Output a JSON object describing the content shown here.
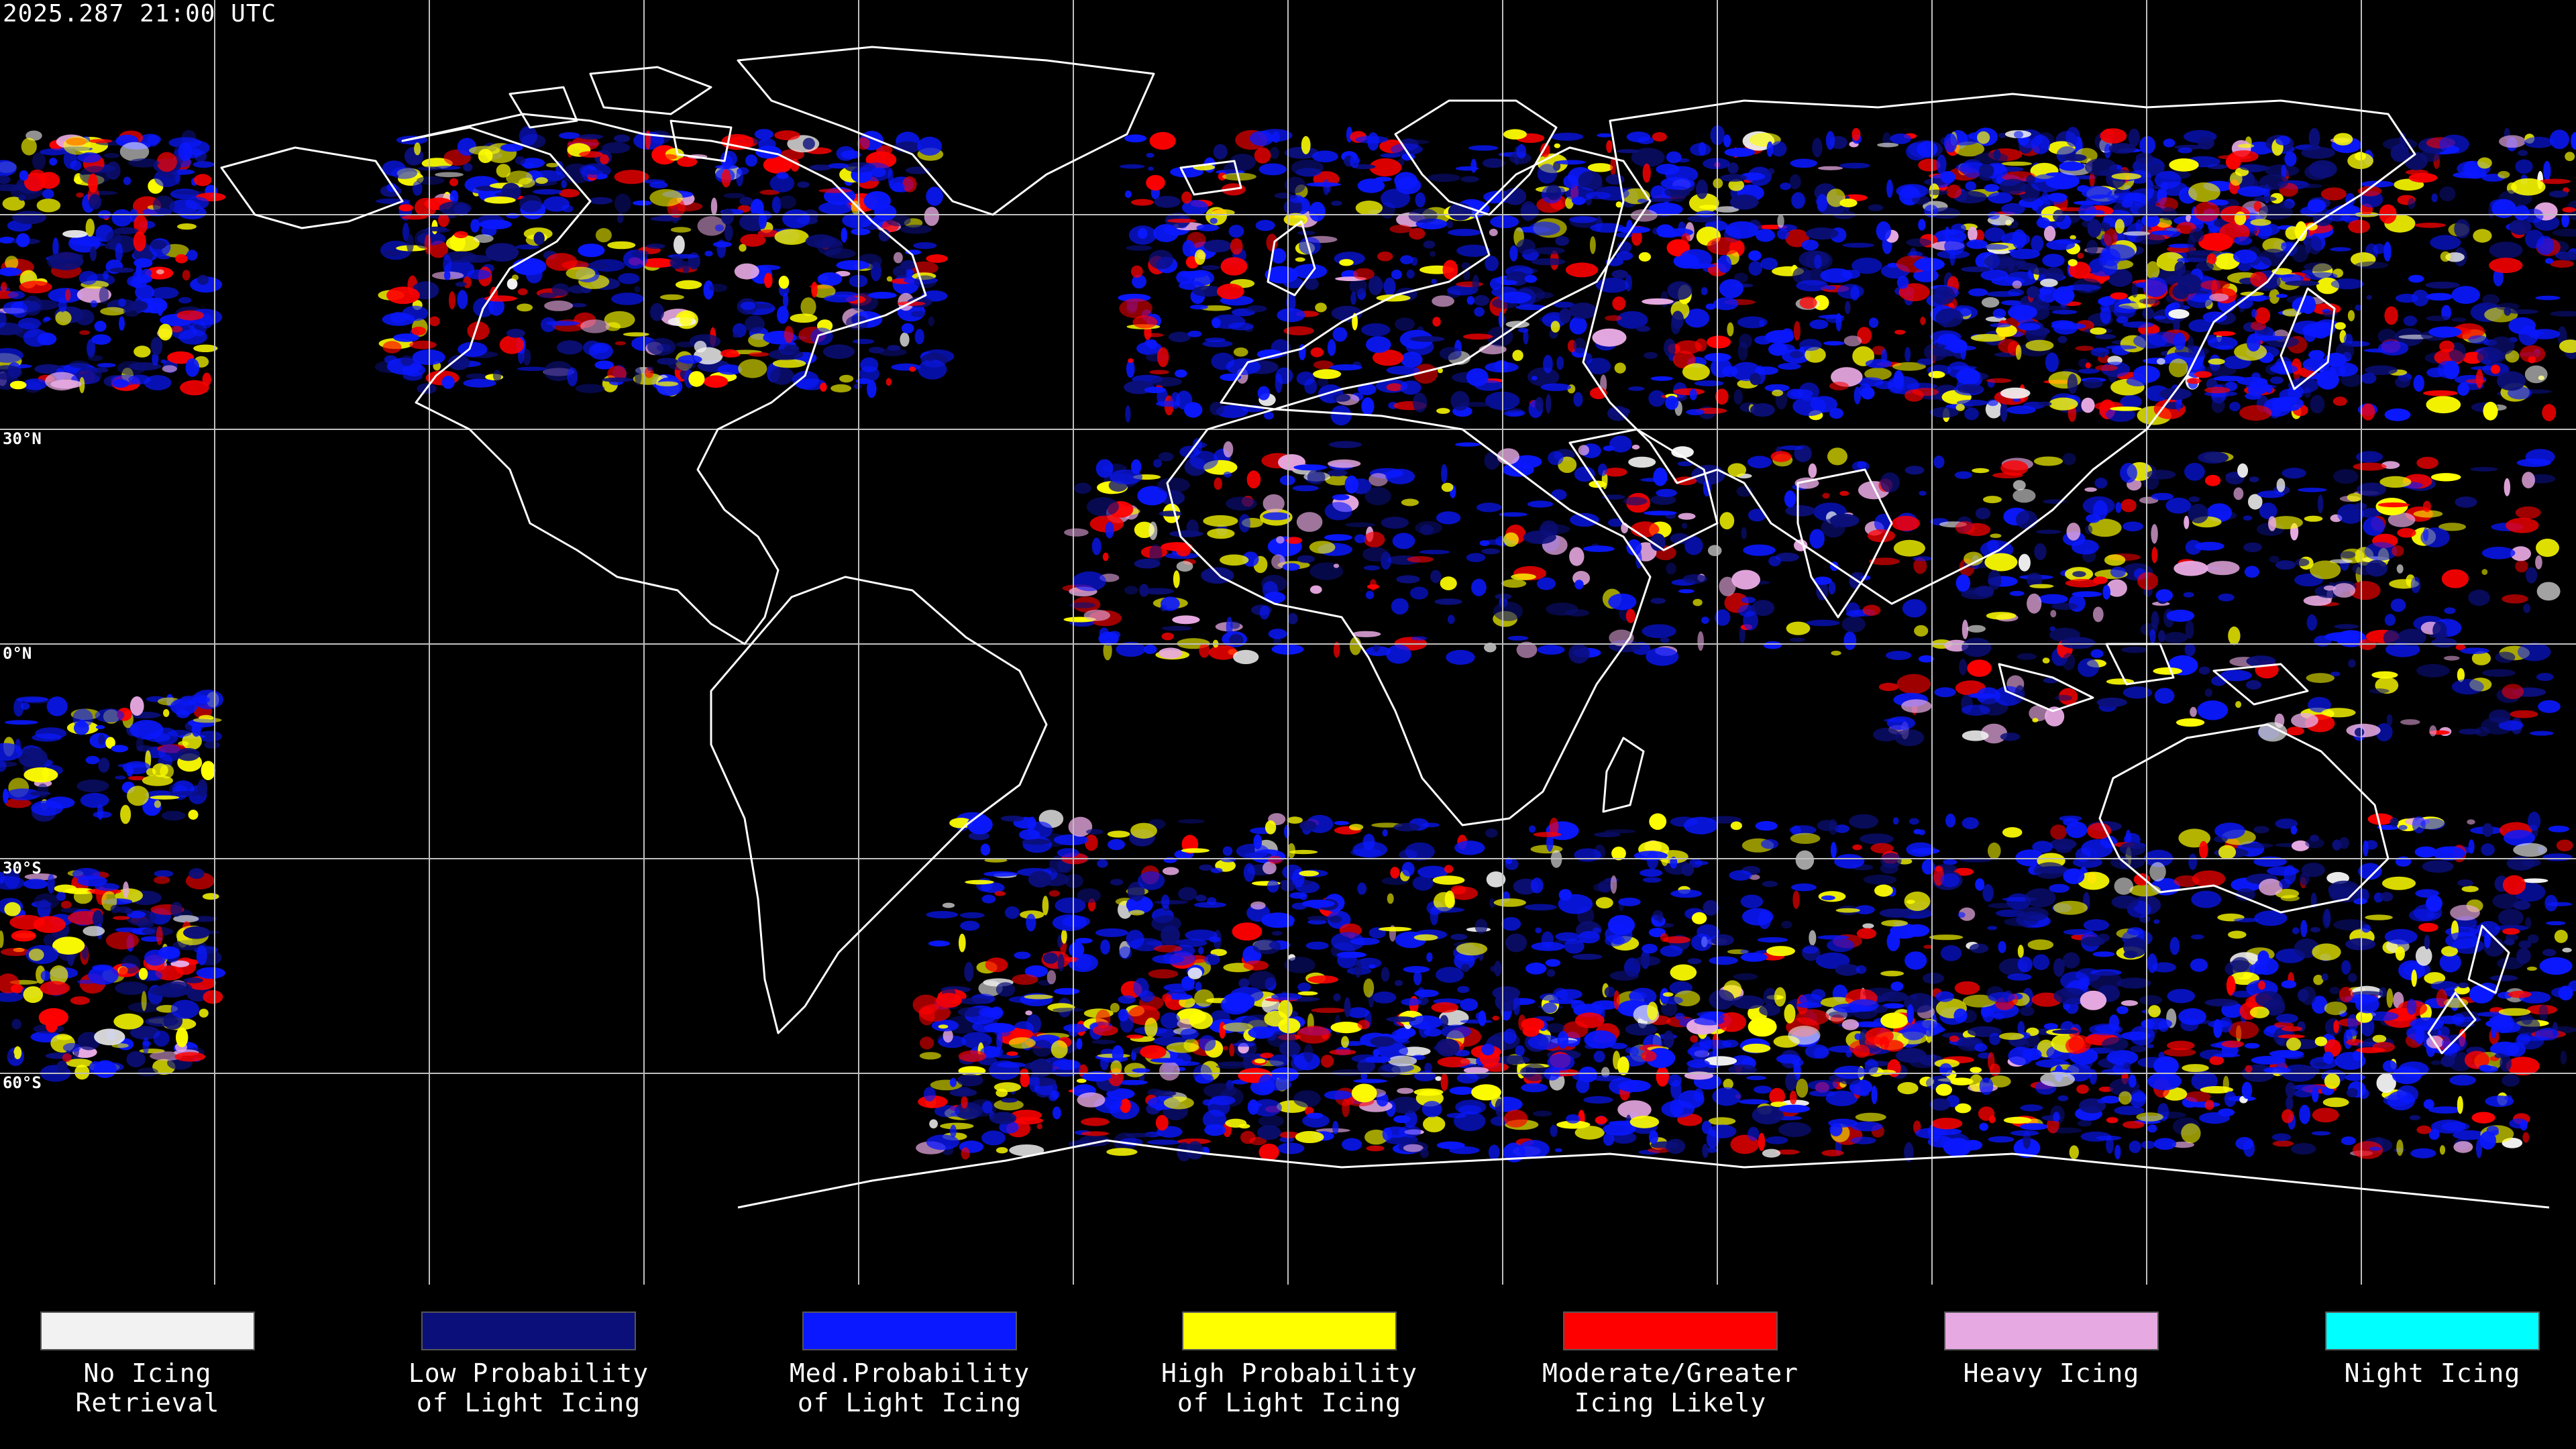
{
  "header": {
    "timestamp": "2025.287 21:00 UTC"
  },
  "map": {
    "latitude_labels": [
      "30°N",
      "0°N",
      "30°S",
      "60°S"
    ],
    "colors": {
      "background": "#000000",
      "coastline": "#ffffff",
      "grid": "#bfbfbf"
    }
  },
  "legend": {
    "items": [
      {
        "line1": "No Icing",
        "line2": "Retrieval",
        "color": "#f2f2f2"
      },
      {
        "line1": "Low Probability",
        "line2": "of Light Icing",
        "color": "#0b0f7a"
      },
      {
        "line1": "Med.Probability",
        "line2": "of Light Icing",
        "color": "#0a18ff"
      },
      {
        "line1": "High Probability",
        "line2": "of Light Icing",
        "color": "#ffff00"
      },
      {
        "line1": "Moderate/Greater",
        "line2": "Icing Likely",
        "color": "#ff0000"
      },
      {
        "line1": "Heavy Icing",
        "line2": "",
        "color": "#e7a9e2"
      },
      {
        "line1": "Night Icing",
        "line2": "",
        "color": "#00ffff"
      }
    ]
  }
}
